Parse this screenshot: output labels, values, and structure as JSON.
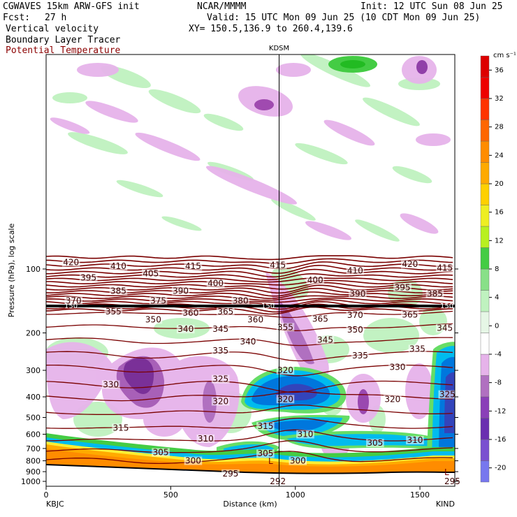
{
  "header": {
    "model_line": "CGWAVES 15km ARW-GFS init",
    "org": "NCAR/MMMM",
    "init": "Init: 12 UTC Sun 08 Jun 25",
    "fcst_label": "Fcst:",
    "fcst_value": "27 h",
    "valid": "Valid: 15 UTC Mon 09 Jun 25 (10 CDT Mon 09 Jun 25)",
    "field1": "Vertical velocity",
    "field2": "Boundary Layer Tracer",
    "field3": "Potential Temperature",
    "xy": "XY= 150.5,136.9 to 260.4,139.6"
  },
  "colors": {
    "theta": "#7a0000",
    "positive": "#90ee90",
    "negative": "#e0a6e8",
    "tracer": "#ff8c00"
  },
  "chart_data": {
    "type": "heatmap",
    "title": "",
    "xlabel": "Distance (km)",
    "ylabel": "Pressure (hPa), log scale",
    "x_ticks": [
      0,
      500,
      1000,
      1500
    ],
    "x_range": [
      0,
      1640
    ],
    "y_ticks": [
      100,
      200,
      300,
      400,
      500,
      600,
      700,
      800,
      900,
      1000
    ],
    "y_scale": "log",
    "left_station": "KBJC",
    "right_station": "KIND",
    "mid_station": "KDSM",
    "mid_station_x_km": 935,
    "tropopause_label": "150",
    "tropopause_hpa": 150,
    "low_marker": "L",
    "colorbar": {
      "unit": "cm s⁻¹",
      "ticks": [
        -20,
        -16,
        -12,
        -8,
        -4,
        0,
        4,
        8,
        12,
        16,
        20,
        24,
        28,
        32,
        36
      ]
    },
    "theta_labels": [
      {
        "text": "420",
        "x": 100,
        "p": 93
      },
      {
        "text": "410",
        "x": 290,
        "p": 97
      },
      {
        "text": "415",
        "x": 590,
        "p": 97
      },
      {
        "text": "395",
        "x": 170,
        "p": 110
      },
      {
        "text": "405",
        "x": 420,
        "p": 105
      },
      {
        "text": "400",
        "x": 680,
        "p": 117
      },
      {
        "text": "385",
        "x": 290,
        "p": 127
      },
      {
        "text": "390",
        "x": 540,
        "p": 127
      },
      {
        "text": "380",
        "x": 780,
        "p": 141
      },
      {
        "text": "375",
        "x": 450,
        "p": 141
      },
      {
        "text": "370",
        "x": 110,
        "p": 141
      },
      {
        "text": "355",
        "x": 270,
        "p": 159
      },
      {
        "text": "350",
        "x": 430,
        "p": 173
      },
      {
        "text": "360",
        "x": 580,
        "p": 161
      },
      {
        "text": "365",
        "x": 720,
        "p": 159
      },
      {
        "text": "360",
        "x": 840,
        "p": 173
      },
      {
        "text": "340",
        "x": 560,
        "p": 192
      },
      {
        "text": "345",
        "x": 700,
        "p": 192
      },
      {
        "text": "340",
        "x": 810,
        "p": 220
      },
      {
        "text": "335",
        "x": 700,
        "p": 243
      },
      {
        "text": "355",
        "x": 960,
        "p": 188
      },
      {
        "text": "415",
        "x": 930,
        "p": 96
      },
      {
        "text": "400",
        "x": 1080,
        "p": 113
      },
      {
        "text": "410",
        "x": 1240,
        "p": 102
      },
      {
        "text": "420",
        "x": 1460,
        "p": 95
      },
      {
        "text": "415",
        "x": 1600,
        "p": 99
      },
      {
        "text": "395",
        "x": 1430,
        "p": 122
      },
      {
        "text": "385",
        "x": 1560,
        "p": 131
      },
      {
        "text": "390",
        "x": 1250,
        "p": 131
      },
      {
        "text": "365",
        "x": 1100,
        "p": 172
      },
      {
        "text": "370",
        "x": 1240,
        "p": 165
      },
      {
        "text": "365",
        "x": 1460,
        "p": 164
      },
      {
        "text": "350",
        "x": 1240,
        "p": 193
      },
      {
        "text": "345",
        "x": 1120,
        "p": 216
      },
      {
        "text": "345",
        "x": 1600,
        "p": 190
      },
      {
        "text": "335",
        "x": 1490,
        "p": 238
      },
      {
        "text": "335",
        "x": 1260,
        "p": 256
      },
      {
        "text": "330",
        "x": 1410,
        "p": 290
      },
      {
        "text": "330",
        "x": 260,
        "p": 350
      },
      {
        "text": "325",
        "x": 700,
        "p": 330
      },
      {
        "text": "320",
        "x": 700,
        "p": 420
      },
      {
        "text": "320",
        "x": 960,
        "p": 410
      },
      {
        "text": "320",
        "x": 1390,
        "p": 410
      },
      {
        "text": "325",
        "x": 1610,
        "p": 390
      },
      {
        "text": "320",
        "x": 960,
        "p": 300
      },
      {
        "text": "315",
        "x": 300,
        "p": 560
      },
      {
        "text": "315",
        "x": 880,
        "p": 550
      },
      {
        "text": "310",
        "x": 640,
        "p": 630
      },
      {
        "text": "310",
        "x": 1040,
        "p": 600
      },
      {
        "text": "310",
        "x": 1480,
        "p": 640
      },
      {
        "text": "305",
        "x": 460,
        "p": 730
      },
      {
        "text": "305",
        "x": 880,
        "p": 740
      },
      {
        "text": "305",
        "x": 1320,
        "p": 660
      },
      {
        "text": "300",
        "x": 590,
        "p": 800
      },
      {
        "text": "300",
        "x": 1010,
        "p": 800
      },
      {
        "text": "295",
        "x": 740,
        "p": 920
      },
      {
        "text": "292",
        "x": 930,
        "p": 1000
      },
      {
        "text": "295",
        "x": 1630,
        "p": 1000
      }
    ]
  }
}
